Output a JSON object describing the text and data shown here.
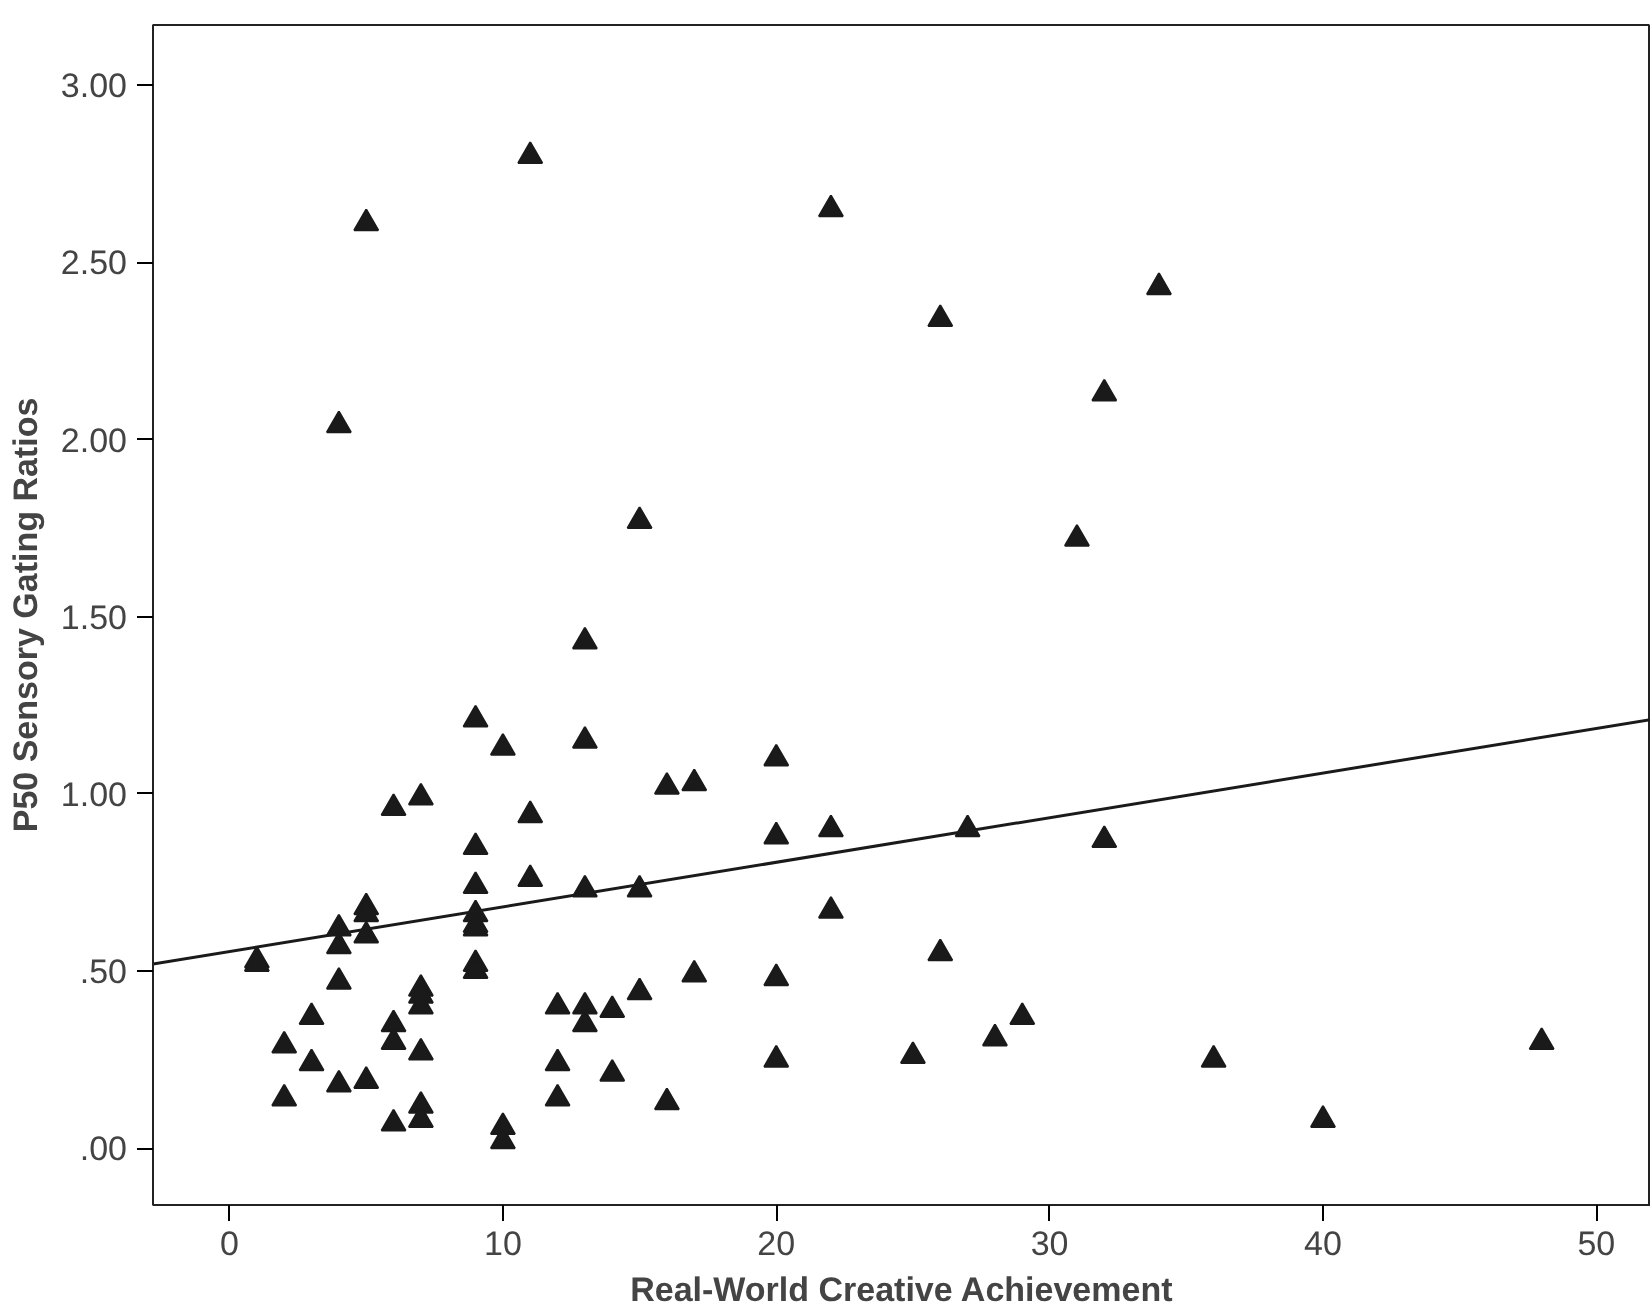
{
  "chart_data": {
    "type": "scatter",
    "xlabel": "Real-World Creative Achievement",
    "ylabel": "P50 Sensory Gating Ratios",
    "xlim": [
      -2.8,
      52
    ],
    "ylim": [
      -0.16,
      3.17
    ],
    "xticks": [
      0,
      10,
      20,
      30,
      40,
      50
    ],
    "yticks": [
      {
        "value": 0,
        "label": ".00"
      },
      {
        "value": 0.5,
        "label": ".50"
      },
      {
        "value": 1,
        "label": "1.00"
      },
      {
        "value": 1.5,
        "label": "1.50"
      },
      {
        "value": 2,
        "label": "2.00"
      },
      {
        "value": 2.5,
        "label": "2.50"
      },
      {
        "value": 3,
        "label": "3.00"
      }
    ],
    "grid": false,
    "series": [
      {
        "marker": "triangle",
        "color": "#1a1a1a",
        "x": [
          9,
          10,
          13,
          16,
          6,
          7,
          11,
          9,
          9,
          11,
          13,
          15,
          5,
          5,
          9,
          9,
          9,
          4,
          4,
          5,
          1,
          1,
          4,
          9,
          9,
          7,
          7,
          7,
          3,
          6,
          6,
          7,
          2,
          3,
          4,
          5,
          2,
          6,
          7,
          7,
          10,
          10,
          12,
          13,
          13,
          14,
          15,
          12,
          12,
          14,
          16,
          17,
          20,
          20,
          22,
          27,
          32,
          22,
          26,
          17,
          20,
          29,
          28,
          25,
          20,
          11,
          5,
          22,
          34,
          26,
          32,
          4,
          15,
          31,
          13,
          36,
          40,
          48
        ],
        "values": [
          1.21,
          1.13,
          1.15,
          1.02,
          0.96,
          0.99,
          0.94,
          0.85,
          0.74,
          0.76,
          0.73,
          0.73,
          0.68,
          0.66,
          0.66,
          0.63,
          0.62,
          0.62,
          0.57,
          0.6,
          0.53,
          0.52,
          0.47,
          0.52,
          0.5,
          0.45,
          0.43,
          0.4,
          0.37,
          0.35,
          0.3,
          0.27,
          0.29,
          0.24,
          0.18,
          0.19,
          0.14,
          0.07,
          0.12,
          0.08,
          0.06,
          0.02,
          0.4,
          0.4,
          0.35,
          0.39,
          0.44,
          0.24,
          0.14,
          0.21,
          0.13,
          1.03,
          1.1,
          0.88,
          0.9,
          0.9,
          0.87,
          0.67,
          0.55,
          0.49,
          0.48,
          0.37,
          0.31,
          0.26,
          0.25,
          2.8,
          2.61,
          2.65,
          2.43,
          2.34,
          2.13,
          2.04,
          1.77,
          1.72,
          1.43,
          0.25,
          0.08,
          0.3
        ]
      },
      {
        "type": "line",
        "color": "#1a1a1a",
        "line_style": "solid",
        "x": [
          -2.8,
          52
        ],
        "values": [
          0.52,
          1.21
        ]
      }
    ]
  }
}
